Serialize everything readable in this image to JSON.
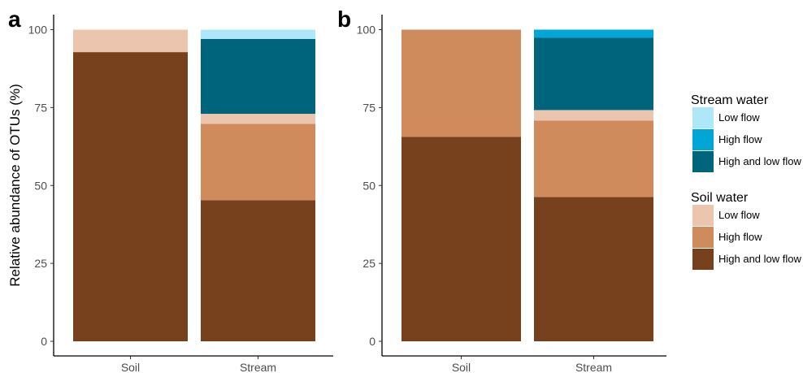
{
  "colors": {
    "stream_low": "#aee8f8",
    "stream_high": "#00a6d6",
    "stream_both": "#00647d",
    "soil_low": "#ebc5ad",
    "soil_high": "#d08b5c",
    "soil_both": "#77411e"
  },
  "chart_data": [
    {
      "type": "bar",
      "stacked": true,
      "panel": "a",
      "categories": [
        "Soil",
        "Stream"
      ],
      "ylabel": "Relative abundance of OTUs (%)",
      "ylim": [
        0,
        100
      ],
      "yticks": [
        0,
        25,
        50,
        75,
        100
      ],
      "series": [
        {
          "key": "soil_both",
          "group": "Soil water",
          "name": "High and low flow",
          "values": [
            92.8,
            45.3
          ]
        },
        {
          "key": "soil_high",
          "group": "Soil water",
          "name": "High flow",
          "values": [
            0,
            24.5
          ]
        },
        {
          "key": "soil_low",
          "group": "Soil water",
          "name": "Low flow",
          "values": [
            7.2,
            3.2
          ]
        },
        {
          "key": "stream_both",
          "group": "Stream water",
          "name": "High and low flow",
          "values": [
            0,
            24.0
          ]
        },
        {
          "key": "stream_high",
          "group": "Stream water",
          "name": "High flow",
          "values": [
            0,
            0
          ]
        },
        {
          "key": "stream_low",
          "group": "Stream water",
          "name": "Low flow",
          "values": [
            0,
            3.0
          ]
        }
      ]
    },
    {
      "type": "bar",
      "stacked": true,
      "panel": "b",
      "categories": [
        "Soil",
        "Stream"
      ],
      "ylabel": "",
      "ylim": [
        0,
        100
      ],
      "yticks": [
        0,
        25,
        50,
        75,
        100
      ],
      "series": [
        {
          "key": "soil_both",
          "group": "Soil water",
          "name": "High and low flow",
          "values": [
            65.6,
            46.3
          ]
        },
        {
          "key": "soil_high",
          "group": "Soil water",
          "name": "High flow",
          "values": [
            34.4,
            24.5
          ]
        },
        {
          "key": "soil_low",
          "group": "Soil water",
          "name": "Low flow",
          "values": [
            0,
            3.4
          ]
        },
        {
          "key": "stream_both",
          "group": "Stream water",
          "name": "High and low flow",
          "values": [
            0,
            23.2
          ]
        },
        {
          "key": "stream_high",
          "group": "Stream water",
          "name": "High flow",
          "values": [
            0,
            2.6
          ]
        },
        {
          "key": "stream_low",
          "group": "Stream water",
          "name": "Low flow",
          "values": [
            0,
            0
          ]
        }
      ]
    }
  ],
  "legend": {
    "placement": "right",
    "groups": [
      {
        "title": "Stream water",
        "items": [
          {
            "key": "stream_low",
            "label": "Low flow"
          },
          {
            "key": "stream_high",
            "label": "High flow"
          },
          {
            "key": "stream_both",
            "label": "High and low flow"
          }
        ]
      },
      {
        "title": "Soil water",
        "items": [
          {
            "key": "soil_low",
            "label": "Low flow"
          },
          {
            "key": "soil_high",
            "label": "High flow"
          },
          {
            "key": "soil_both",
            "label": "High and low flow"
          }
        ]
      }
    ]
  }
}
